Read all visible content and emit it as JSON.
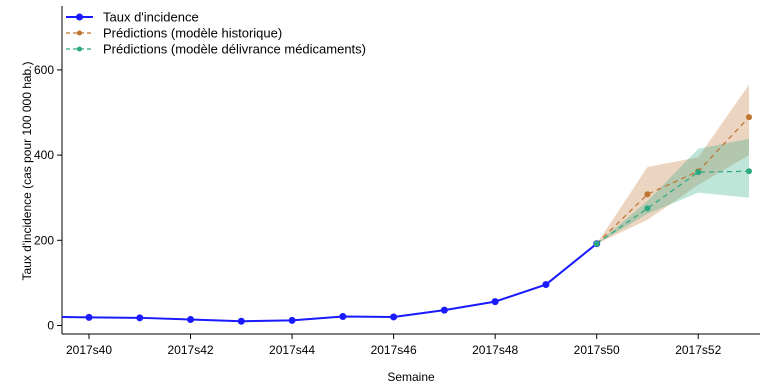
{
  "chart_data": {
    "type": "line",
    "title": "",
    "xlabel": "Semaine",
    "ylabel": "Taux d'incidence (cas pour 100 000 hab.)",
    "x": [
      "2017s39",
      "2017s40",
      "2017s41",
      "2017s42",
      "2017s43",
      "2017s44",
      "2017s45",
      "2017s46",
      "2017s47",
      "2017s48",
      "2017s49",
      "2017s50",
      "2017s51",
      "2017s52",
      "2017s53"
    ],
    "x_tick_labels": [
      "2017s40",
      "2017s42",
      "2017s44",
      "2017s46",
      "2017s48",
      "2017s50",
      "2017s52"
    ],
    "y_tick_labels": [
      "0",
      "200",
      "400",
      "600"
    ],
    "ylim": [
      -20,
      750
    ],
    "grid": false,
    "legend_position": "top-left",
    "series": [
      {
        "name": "Taux d'incidence",
        "color": "#1a1aff",
        "style": "solid",
        "x": [
          "2017s39",
          "2017s40",
          "2017s41",
          "2017s42",
          "2017s43",
          "2017s44",
          "2017s45",
          "2017s46",
          "2017s47",
          "2017s48",
          "2017s49",
          "2017s50"
        ],
        "values": [
          20,
          19,
          18,
          14,
          10,
          12,
          21,
          20,
          36,
          56,
          96,
          192
        ]
      },
      {
        "name": "Prédictions (modèle historique)",
        "color": "#c0732e",
        "style": "dashed",
        "x": [
          "2017s50",
          "2017s51",
          "2017s52",
          "2017s53"
        ],
        "values": [
          192,
          308,
          362,
          489
        ],
        "lower": [
          192,
          248,
          330,
          400
        ],
        "upper": [
          192,
          372,
          395,
          565
        ]
      },
      {
        "name": "Prédictions (modèle délivrance médicaments)",
        "color": "#2aa980",
        "style": "dashed",
        "x": [
          "2017s50",
          "2017s51",
          "2017s52",
          "2017s53"
        ],
        "values": [
          192,
          275,
          360,
          362
        ],
        "lower": [
          192,
          262,
          312,
          300
        ],
        "upper": [
          192,
          292,
          415,
          438
        ]
      }
    ]
  }
}
